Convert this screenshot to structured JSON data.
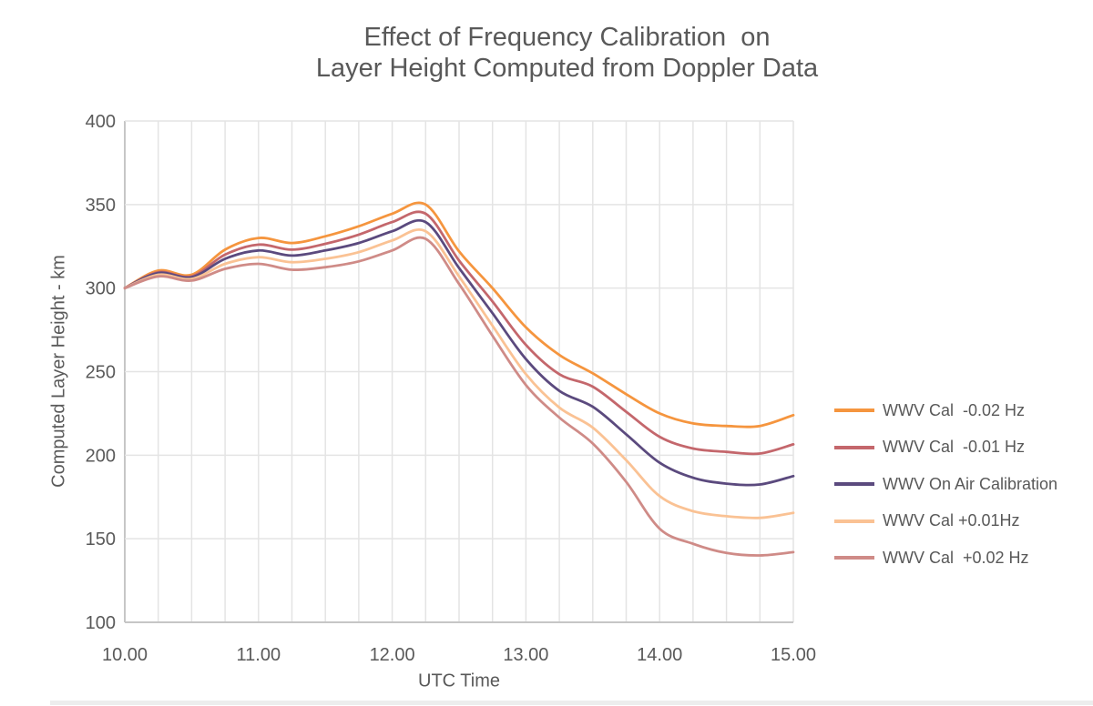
{
  "chart_data": {
    "type": "line",
    "title": [
      "Effect of Frequency Calibration  on",
      "Layer Height Computed from Doppler Data"
    ],
    "xlabel": "UTC Time",
    "ylabel": "Computed Layer Height - km",
    "xlim": [
      10,
      15
    ],
    "ylim": [
      100,
      400
    ],
    "grid": true,
    "x_minor_grid_step": 0.25,
    "y_grid_step": 50,
    "legend_position": "right",
    "x_tick_values": [
      10,
      11,
      12,
      13,
      14,
      15
    ],
    "x_tick_labels": [
      "10.00",
      "11.00",
      "12.00",
      "13.00",
      "14.00",
      "15.00"
    ],
    "y_tick_values": [
      400,
      350,
      300,
      250,
      200,
      150,
      100
    ],
    "y_tick_labels": [
      "400",
      "350",
      "300",
      "250",
      "200",
      "150",
      "100"
    ],
    "x": [
      10,
      10.25,
      10.5,
      10.75,
      11,
      11.25,
      11.5,
      11.75,
      12,
      12.25,
      12.5,
      12.75,
      13,
      13.25,
      13.5,
      13.75,
      14,
      14.25,
      14.5,
      14.75,
      15
    ],
    "series": [
      {
        "name": "WWV Cal  -0.02 Hz",
        "color": "#F5953E",
        "values": [
          300,
          310.5,
          308,
          323,
          330,
          327,
          331,
          337,
          344.5,
          350,
          322,
          300,
          276.5,
          260,
          249,
          236.5,
          225,
          219,
          217.5,
          217.5,
          224
        ]
      },
      {
        "name": "WWV Cal  -0.01 Hz",
        "color": "#C4676C",
        "values": [
          300,
          309.5,
          307,
          320,
          326,
          323,
          326.5,
          332,
          339.5,
          344.5,
          316.5,
          292,
          266,
          248.5,
          241,
          226,
          211,
          204,
          202,
          201,
          206.5
        ]
      },
      {
        "name": "WWV On Air Calibration",
        "color": "#5B4A7E",
        "values": [
          300,
          309,
          306.5,
          317.5,
          322.5,
          319.5,
          322.5,
          327,
          334,
          339.5,
          312,
          285,
          257.5,
          238.5,
          229,
          212.5,
          195.5,
          186.5,
          183,
          182.5,
          187.5
        ]
      },
      {
        "name": "WWV Cal +0.01Hz",
        "color": "#FAC294",
        "values": [
          300,
          308,
          305.5,
          314.5,
          318.5,
          315.5,
          317.5,
          321.5,
          328.5,
          334,
          307,
          277.5,
          248.5,
          228.5,
          216.5,
          197,
          175.5,
          166.5,
          163.5,
          162.5,
          165.5
        ]
      },
      {
        "name": "WWV Cal  +0.02 Hz",
        "color": "#CF8B87",
        "values": [
          300,
          307,
          304.5,
          311.5,
          314.5,
          311,
          312.5,
          316,
          322.5,
          329.5,
          302.5,
          271.5,
          242,
          222.5,
          207,
          184,
          156,
          147,
          141.5,
          140,
          142
        ]
      }
    ]
  },
  "colors": {
    "text": "#595959",
    "grid": "#E4E4E4",
    "axis": "#C6C6C6",
    "background": "#FFFFFF"
  }
}
